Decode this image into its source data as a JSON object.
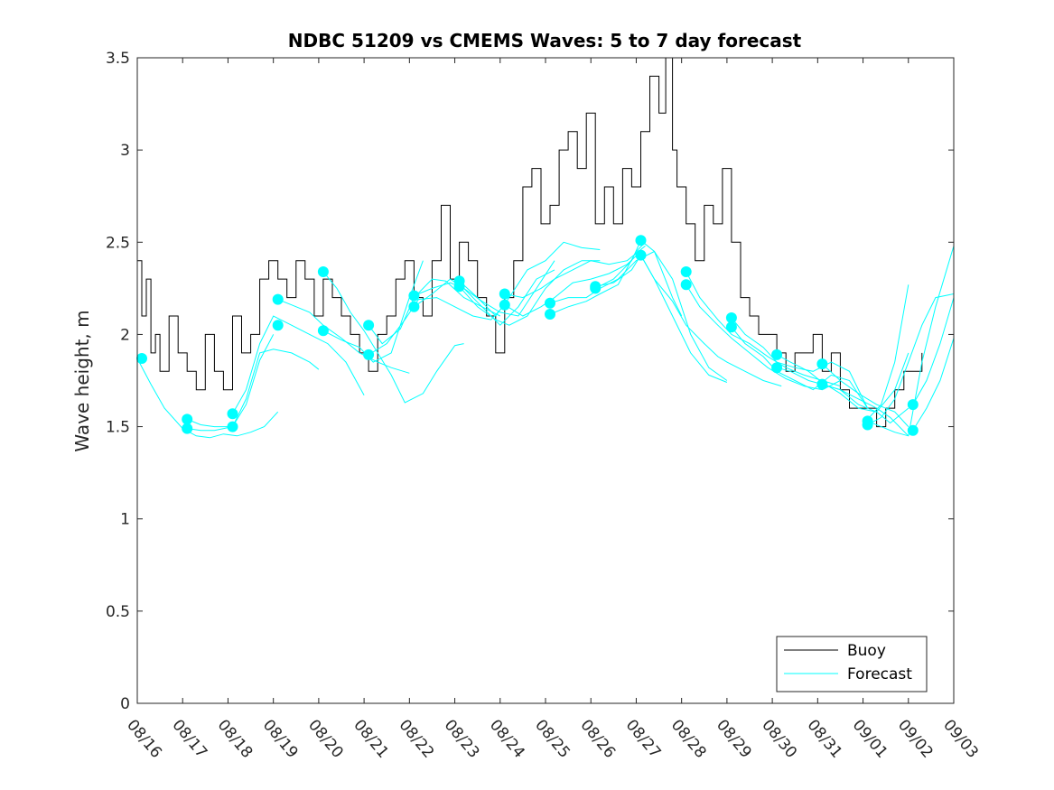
{
  "chart_data": {
    "type": "line",
    "title": "NDBC 51209 vs CMEMS Waves: 5 to 7 day forecast",
    "xlabel": "",
    "ylabel": "Wave height, m",
    "xlim": [
      0,
      18
    ],
    "ylim": [
      0,
      3.5
    ],
    "yticks": [
      0,
      0.5,
      1,
      1.5,
      2,
      2.5,
      3,
      3.5
    ],
    "ytick_labels": [
      "0",
      "0.5",
      "1",
      "1.5",
      "2",
      "2.5",
      "3",
      "3.5"
    ],
    "xtick_labels": [
      "08/16",
      "08/17",
      "08/18",
      "08/19",
      "08/20",
      "08/21",
      "08/22",
      "08/23",
      "08/24",
      "08/25",
      "08/26",
      "08/27",
      "08/28",
      "08/29",
      "08/30",
      "08/31",
      "09/01",
      "09/02",
      "09/03"
    ],
    "legend": {
      "position": "bottom-right",
      "entries": [
        "Buoy",
        "Forecast"
      ]
    },
    "colors": {
      "buoy": "#000000",
      "forecast": "#00ffff",
      "axis": "#262626"
    },
    "buoy": {
      "name": "Buoy",
      "x": [
        0,
        0.1,
        0.2,
        0.3,
        0.4,
        0.5,
        0.7,
        0.9,
        1.1,
        1.3,
        1.5,
        1.7,
        1.9,
        2.1,
        2.3,
        2.5,
        2.7,
        2.9,
        3.1,
        3.3,
        3.5,
        3.7,
        3.9,
        4.1,
        4.3,
        4.5,
        4.7,
        4.9,
        5.1,
        5.3,
        5.5,
        5.7,
        5.9,
        6.1,
        6.3,
        6.5,
        6.7,
        6.9,
        7.1,
        7.3,
        7.5,
        7.7,
        7.9,
        8.1,
        8.3,
        8.5,
        8.7,
        8.9,
        9.1,
        9.3,
        9.5,
        9.7,
        9.9,
        10.1,
        10.3,
        10.5,
        10.7,
        10.9,
        11.1,
        11.3,
        11.5,
        11.65,
        11.8,
        11.9,
        12.1,
        12.3,
        12.5,
        12.7,
        12.9,
        13.1,
        13.3,
        13.5,
        13.7,
        13.9,
        14.1,
        14.3,
        14.5,
        14.7,
        14.9,
        15.1,
        15.3,
        15.5,
        15.7,
        15.9,
        16.1,
        16.3,
        16.5,
        16.7,
        16.9,
        17.1,
        17.3
      ],
      "values": [
        2.4,
        2.1,
        2.3,
        1.9,
        2.0,
        1.8,
        2.1,
        1.9,
        1.8,
        1.7,
        2.0,
        1.8,
        1.7,
        2.1,
        1.9,
        2.0,
        2.3,
        2.4,
        2.3,
        2.2,
        2.4,
        2.3,
        2.1,
        2.3,
        2.2,
        2.1,
        2.0,
        1.9,
        1.8,
        2.0,
        2.1,
        2.3,
        2.4,
        2.2,
        2.1,
        2.4,
        2.7,
        2.3,
        2.5,
        2.4,
        2.2,
        2.1,
        1.9,
        2.2,
        2.4,
        2.8,
        2.9,
        2.6,
        2.7,
        3.0,
        3.1,
        2.9,
        3.2,
        2.6,
        2.8,
        2.6,
        2.9,
        2.8,
        3.1,
        3.4,
        3.2,
        3.5,
        3.0,
        2.8,
        2.6,
        2.4,
        2.7,
        2.6,
        2.9,
        2.5,
        2.2,
        2.1,
        2.0,
        2.0,
        1.9,
        1.8,
        1.9,
        1.9,
        2.0,
        1.8,
        1.9,
        1.7,
        1.6,
        1.6,
        1.6,
        1.5,
        1.6,
        1.7,
        1.8,
        1.8,
        1.9
      ]
    },
    "forecast": [
      {
        "name": "Forecast",
        "x": [
          0,
          0.3,
          0.6,
          1.0,
          1.3,
          1.6,
          1.9,
          2.2,
          2.5,
          2.8,
          3.1
        ],
        "values": [
          1.87,
          1.73,
          1.6,
          1.49,
          1.45,
          1.44,
          1.46,
          1.45,
          1.47,
          1.5,
          1.58
        ]
      },
      {
        "name": "Forecast",
        "x": [
          1.1,
          1.4,
          1.7,
          2.1,
          2.4,
          2.7,
          3.0,
          3.4,
          3.8,
          4.0
        ],
        "values": [
          1.54,
          1.51,
          1.5,
          1.5,
          1.65,
          1.9,
          1.92,
          1.9,
          1.85,
          1.81
        ]
      },
      {
        "name": "Forecast",
        "x": [
          1.1,
          1.4,
          1.7,
          2.1,
          2.4,
          2.7,
          3.0
        ],
        "values": [
          1.49,
          1.48,
          1.48,
          1.5,
          1.62,
          1.86,
          2.0
        ]
      },
      {
        "name": "Forecast",
        "x": [
          2.1,
          2.4,
          2.7,
          3.0,
          3.4,
          3.8,
          4.2,
          4.6,
          5.0
        ],
        "values": [
          1.57,
          1.7,
          1.95,
          2.1,
          2.05,
          2.0,
          1.95,
          1.85,
          1.67
        ]
      },
      {
        "name": "Forecast",
        "x": [
          3.1,
          3.4,
          3.8,
          4.1,
          4.5,
          4.9,
          5.3,
          5.6,
          6.0
        ],
        "values": [
          2.19,
          2.16,
          2.12,
          2.05,
          1.98,
          1.9,
          1.85,
          1.82,
          1.79
        ]
      },
      {
        "name": "Forecast",
        "x": [
          4.1,
          4.4,
          4.7,
          5.0,
          5.3,
          5.6,
          5.9,
          6.3,
          6.6,
          7.0,
          7.2
        ],
        "values": [
          2.34,
          2.25,
          2.12,
          2.02,
          1.9,
          1.78,
          1.63,
          1.68,
          1.8,
          1.94,
          1.95
        ]
      },
      {
        "name": "Forecast",
        "x": [
          4.1,
          4.5,
          4.9,
          5.2,
          5.6,
          6.0,
          6.3
        ],
        "values": [
          2.02,
          1.97,
          1.93,
          1.85,
          1.9,
          2.2,
          2.4
        ]
      },
      {
        "name": "Forecast",
        "x": [
          5.1,
          5.4,
          5.8,
          6.1,
          6.5,
          6.8,
          7.2,
          7.6,
          8.0
        ],
        "values": [
          2.05,
          1.95,
          2.03,
          2.2,
          2.3,
          2.29,
          2.2,
          2.15,
          2.1
        ]
      },
      {
        "name": "Forecast",
        "x": [
          5.1,
          5.5,
          5.9,
          6.2,
          6.6,
          7.0,
          7.4,
          7.8,
          8.1
        ],
        "values": [
          1.89,
          1.95,
          2.08,
          2.19,
          2.2,
          2.15,
          2.1,
          2.08,
          2.16
        ]
      },
      {
        "name": "Forecast",
        "x": [
          6.1,
          6.5,
          6.9,
          7.2,
          7.6,
          8.0,
          8.4,
          8.8,
          9.2
        ],
        "values": [
          2.21,
          2.25,
          2.28,
          2.25,
          2.18,
          2.12,
          2.1,
          2.25,
          2.4
        ]
      },
      {
        "name": "Forecast",
        "x": [
          6.1,
          6.5,
          6.9,
          7.2,
          7.6,
          8.0,
          8.4,
          8.8,
          9.2
        ],
        "values": [
          2.15,
          2.22,
          2.3,
          2.25,
          2.15,
          2.05,
          2.15,
          2.3,
          2.35
        ]
      },
      {
        "name": "Forecast",
        "x": [
          7.1,
          7.5,
          7.9,
          8.2,
          8.6,
          9.0,
          9.4,
          9.8,
          10.2
        ],
        "values": [
          2.29,
          2.2,
          2.1,
          2.2,
          2.35,
          2.4,
          2.5,
          2.47,
          2.46
        ]
      },
      {
        "name": "Forecast",
        "x": [
          7.1,
          7.5,
          7.9,
          8.2,
          8.6,
          9.0,
          9.4,
          9.8,
          10.2
        ],
        "values": [
          2.26,
          2.15,
          2.08,
          2.05,
          2.1,
          2.25,
          2.35,
          2.4,
          2.4
        ]
      },
      {
        "name": "Forecast",
        "x": [
          8.1,
          8.5,
          8.9,
          9.2,
          9.6,
          10.0,
          10.4,
          10.8,
          11.2
        ],
        "values": [
          2.22,
          2.2,
          2.25,
          2.3,
          2.35,
          2.4,
          2.38,
          2.4,
          2.48
        ]
      },
      {
        "name": "Forecast",
        "x": [
          8.1,
          8.5,
          8.9,
          9.2,
          9.6,
          10.0,
          10.4,
          10.8,
          11.1
        ],
        "values": [
          2.16,
          2.1,
          2.15,
          2.2,
          2.28,
          2.3,
          2.33,
          2.38,
          2.45
        ]
      },
      {
        "name": "Forecast",
        "x": [
          9.1,
          9.5,
          9.9,
          10.2,
          10.6,
          11.0,
          11.4,
          11.8,
          12.0
        ],
        "values": [
          2.17,
          2.2,
          2.2,
          2.25,
          2.3,
          2.4,
          2.45,
          2.2,
          2.1
        ]
      },
      {
        "name": "Forecast",
        "x": [
          9.1,
          9.5,
          9.9,
          10.2,
          10.6,
          11.0,
          11.2
        ],
        "values": [
          2.11,
          2.15,
          2.18,
          2.22,
          2.27,
          2.45,
          2.5
        ]
      },
      {
        "name": "Forecast",
        "x": [
          10.1,
          10.5,
          10.9,
          11.1,
          11.4,
          11.8,
          12.2,
          12.6,
          13.0
        ],
        "values": [
          2.26,
          2.28,
          2.35,
          2.43,
          2.3,
          2.1,
          1.9,
          1.78,
          1.74
        ]
      },
      {
        "name": "Forecast",
        "x": [
          10.1,
          10.5,
          10.9,
          11.1,
          11.4,
          11.8,
          12.2,
          12.6,
          13.0
        ],
        "values": [
          2.25,
          2.3,
          2.4,
          2.51,
          2.45,
          2.3,
          2.0,
          1.82,
          1.75
        ]
      },
      {
        "name": "Forecast",
        "x": [
          11.1,
          11.4,
          11.8,
          12.1,
          12.5,
          12.8,
          13.0,
          13.4,
          13.8,
          14.2
        ],
        "values": [
          2.43,
          2.3,
          2.18,
          2.05,
          1.95,
          1.88,
          1.85,
          1.8,
          1.75,
          1.72
        ]
      },
      {
        "name": "Forecast",
        "x": [
          12.1,
          12.4,
          12.8,
          13.1,
          13.5,
          13.9,
          14.3,
          14.7,
          15.1,
          15.5
        ],
        "values": [
          2.34,
          2.2,
          2.08,
          2.0,
          1.95,
          1.88,
          1.82,
          1.78,
          1.75,
          1.72
        ]
      },
      {
        "name": "Forecast",
        "x": [
          12.1,
          12.4,
          12.8,
          13.1,
          13.5,
          13.9,
          14.3,
          14.7,
          15.1,
          15.5
        ],
        "values": [
          2.27,
          2.15,
          2.05,
          1.98,
          1.9,
          1.82,
          1.76,
          1.72,
          1.7,
          1.75
        ]
      },
      {
        "name": "Forecast",
        "x": [
          13.1,
          13.4,
          13.8,
          14.1,
          14.5,
          14.9,
          15.3,
          15.7,
          16.1
        ],
        "values": [
          2.09,
          2.0,
          1.93,
          1.85,
          1.82,
          1.8,
          1.85,
          1.8,
          1.6
        ]
      },
      {
        "name": "Forecast",
        "x": [
          13.1,
          13.4,
          13.8,
          14.1,
          14.5,
          14.9,
          15.3,
          15.7,
          16.1
        ],
        "values": [
          2.04,
          1.95,
          1.88,
          1.8,
          1.75,
          1.7,
          1.78,
          1.75,
          1.6
        ]
      },
      {
        "name": "Forecast",
        "x": [
          14.1,
          14.4,
          14.8,
          15.1,
          15.5,
          15.9,
          16.3,
          16.6,
          17.0
        ],
        "values": [
          1.89,
          1.85,
          1.8,
          1.74,
          1.68,
          1.6,
          1.58,
          1.52,
          1.6
        ]
      },
      {
        "name": "Forecast",
        "x": [
          14.1,
          14.4,
          14.8,
          15.1,
          15.5,
          15.9,
          16.3,
          16.6,
          17.0
        ],
        "values": [
          1.82,
          1.8,
          1.75,
          1.73,
          1.7,
          1.65,
          1.6,
          1.55,
          1.45
        ]
      },
      {
        "name": "Forecast",
        "x": [
          15.1,
          15.5,
          15.9,
          16.3,
          16.7,
          17.0
        ],
        "values": [
          1.84,
          1.75,
          1.68,
          1.62,
          1.58,
          1.5
        ]
      },
      {
        "name": "Forecast",
        "x": [
          15.1,
          15.5,
          15.9,
          16.3,
          16.7,
          17.0
        ],
        "values": [
          1.73,
          1.7,
          1.62,
          1.58,
          1.7,
          1.9
        ]
      },
      {
        "name": "Forecast",
        "x": [
          16.1,
          16.4,
          16.7,
          17.0,
          17.3,
          17.6,
          18.0
        ],
        "values": [
          1.53,
          1.5,
          1.47,
          1.45,
          1.85,
          2.15,
          2.48
        ]
      },
      {
        "name": "Forecast",
        "x": [
          16.1,
          16.4,
          16.7,
          17.0,
          17.3,
          17.6,
          18.0
        ],
        "values": [
          1.51,
          1.55,
          1.65,
          1.85,
          2.05,
          2.2,
          2.22
        ]
      },
      {
        "name": "Forecast",
        "x": [
          16.1,
          16.4,
          16.7,
          17.0
        ],
        "values": [
          1.54,
          1.62,
          1.85,
          2.27
        ]
      },
      {
        "name": "Forecast",
        "x": [
          17.1,
          17.4,
          17.7,
          18.0
        ],
        "values": [
          1.48,
          1.6,
          1.75,
          1.98
        ]
      },
      {
        "name": "Forecast",
        "x": [
          17.1,
          17.4,
          17.7,
          18.0
        ],
        "values": [
          1.62,
          1.75,
          1.95,
          2.2
        ]
      }
    ],
    "forecast_markers": {
      "x": [
        0.1,
        1.1,
        1.1,
        2.1,
        2.1,
        3.1,
        3.1,
        4.1,
        4.1,
        5.1,
        5.1,
        6.1,
        6.1,
        7.1,
        7.1,
        8.1,
        8.1,
        9.1,
        9.1,
        10.1,
        10.1,
        11.1,
        11.1,
        12.1,
        12.1,
        13.1,
        13.1,
        14.1,
        14.1,
        15.1,
        15.1,
        16.1,
        16.1,
        17.1,
        17.1
      ],
      "values": [
        1.87,
        1.54,
        1.49,
        1.57,
        1.5,
        2.19,
        2.05,
        2.34,
        2.02,
        2.05,
        1.89,
        2.21,
        2.15,
        2.29,
        2.26,
        2.22,
        2.16,
        2.17,
        2.11,
        2.26,
        2.25,
        2.51,
        2.43,
        2.34,
        2.27,
        2.09,
        2.04,
        1.89,
        1.82,
        1.84,
        1.73,
        1.53,
        1.51,
        1.62,
        1.48
      ]
    }
  }
}
